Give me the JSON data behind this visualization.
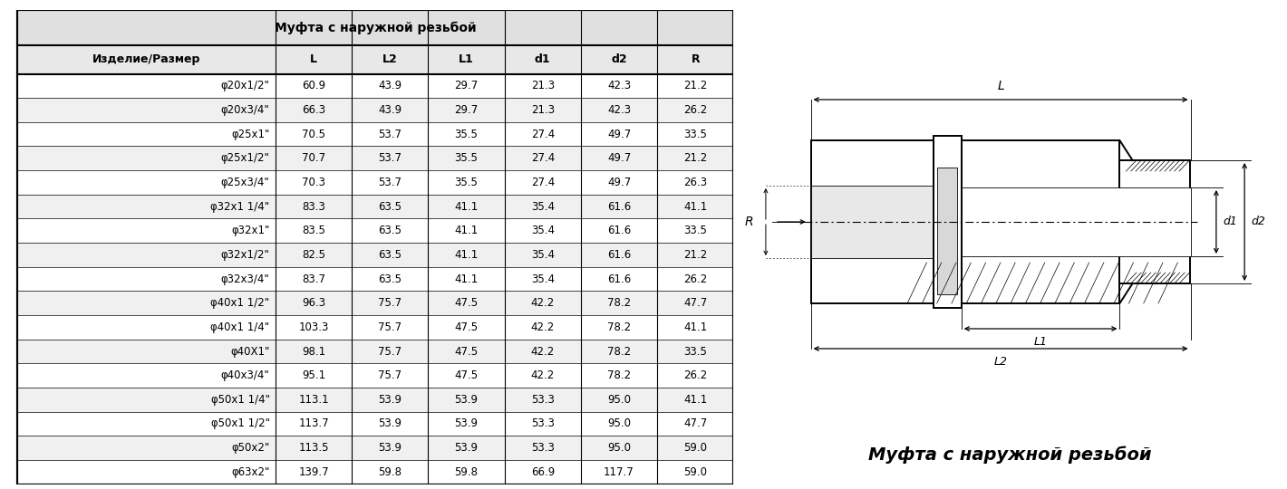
{
  "title": "Муфта с наружной резьбой",
  "columns": [
    "Изделие/Размер",
    "L",
    "L2",
    "L1",
    "d1",
    "d2",
    "R"
  ],
  "rows": [
    [
      "φ20x1/2\"",
      "60.9",
      "43.9",
      "29.7",
      "21.3",
      "42.3",
      "21.2"
    ],
    [
      "φ20x3/4\"",
      "66.3",
      "43.9",
      "29.7",
      "21.3",
      "42.3",
      "26.2"
    ],
    [
      "φ25x1\"",
      "70.5",
      "53.7",
      "35.5",
      "27.4",
      "49.7",
      "33.5"
    ],
    [
      "φ25x1/2\"",
      "70.7",
      "53.7",
      "35.5",
      "27.4",
      "49.7",
      "21.2"
    ],
    [
      "φ25x3/4\"",
      "70.3",
      "53.7",
      "35.5",
      "27.4",
      "49.7",
      "26.3"
    ],
    [
      "φ32x1 1/4\"",
      "83.3",
      "63.5",
      "41.1",
      "35.4",
      "61.6",
      "41.1"
    ],
    [
      "φ32x1\"",
      "83.5",
      "63.5",
      "41.1",
      "35.4",
      "61.6",
      "33.5"
    ],
    [
      "φ32x1/2\"",
      "82.5",
      "63.5",
      "41.1",
      "35.4",
      "61.6",
      "21.2"
    ],
    [
      "φ32x3/4\"",
      "83.7",
      "63.5",
      "41.1",
      "35.4",
      "61.6",
      "26.2"
    ],
    [
      "φ40x1 1/2\"",
      "96.3",
      "75.7",
      "47.5",
      "42.2",
      "78.2",
      "47.7"
    ],
    [
      "φ40x1 1/4\"",
      "103.3",
      "75.7",
      "47.5",
      "42.2",
      "78.2",
      "41.1"
    ],
    [
      "φ40X1\"",
      "98.1",
      "75.7",
      "47.5",
      "42.2",
      "78.2",
      "33.5"
    ],
    [
      "φ40x3/4\"",
      "95.1",
      "75.7",
      "47.5",
      "42.2",
      "78.2",
      "26.2"
    ],
    [
      "φ50x1 1/4\"",
      "113.1",
      "53.9",
      "53.9",
      "53.3",
      "95.0",
      "41.1"
    ],
    [
      "φ50x1 1/2\"",
      "113.7",
      "53.9",
      "53.9",
      "53.3",
      "95.0",
      "47.7"
    ],
    [
      "φ50x2\"",
      "113.5",
      "53.9",
      "53.9",
      "53.3",
      "95.0",
      "59.0"
    ],
    [
      "φ63x2\"",
      "139.7",
      "59.8",
      "59.8",
      "66.9",
      "117.7",
      "59.0"
    ]
  ],
  "caption_italic": "Муфта с наружной резьбой"
}
